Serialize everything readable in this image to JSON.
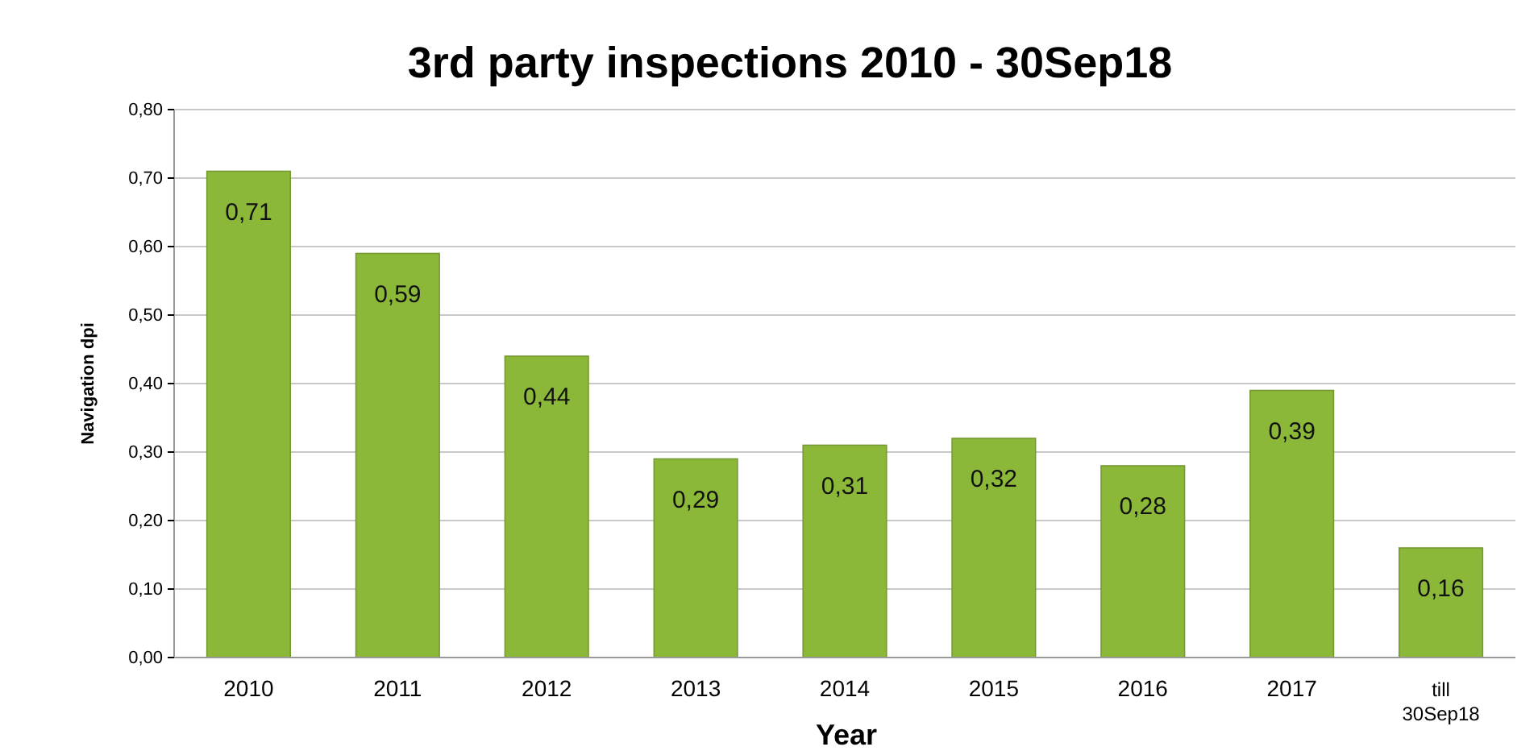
{
  "chart_data": {
    "type": "bar",
    "title": "3rd party inspections 2010 - 30Sep18",
    "xlabel": "Year",
    "ylabel": "Navigation dpi",
    "categories": [
      "2010",
      "2011",
      "2012",
      "2013",
      "2014",
      "2015",
      "2016",
      "2017",
      "till 30Sep18"
    ],
    "values": [
      0.71,
      0.59,
      0.44,
      0.29,
      0.31,
      0.32,
      0.28,
      0.39,
      0.16
    ],
    "value_labels": [
      "0,71",
      "0,59",
      "0,44",
      "0,29",
      "0,31",
      "0,32",
      "0,28",
      "0,39",
      "0,16"
    ],
    "color": "#8cb83a",
    "ylim": [
      0,
      0.8
    ],
    "yticks": [
      {
        "value": 0,
        "label": "0,00"
      },
      {
        "value": 0.1,
        "label": "0,10"
      },
      {
        "value": 0.2,
        "label": "0,20"
      },
      {
        "value": 0.3,
        "label": "0,30"
      },
      {
        "value": 0.4,
        "label": "0,40"
      },
      {
        "value": 0.5,
        "label": "0,50"
      },
      {
        "value": 0.6,
        "label": "0,60"
      },
      {
        "value": 0.7,
        "label": "0,70"
      },
      {
        "value": 0.8,
        "label": "0,80"
      }
    ],
    "grid": "y"
  }
}
